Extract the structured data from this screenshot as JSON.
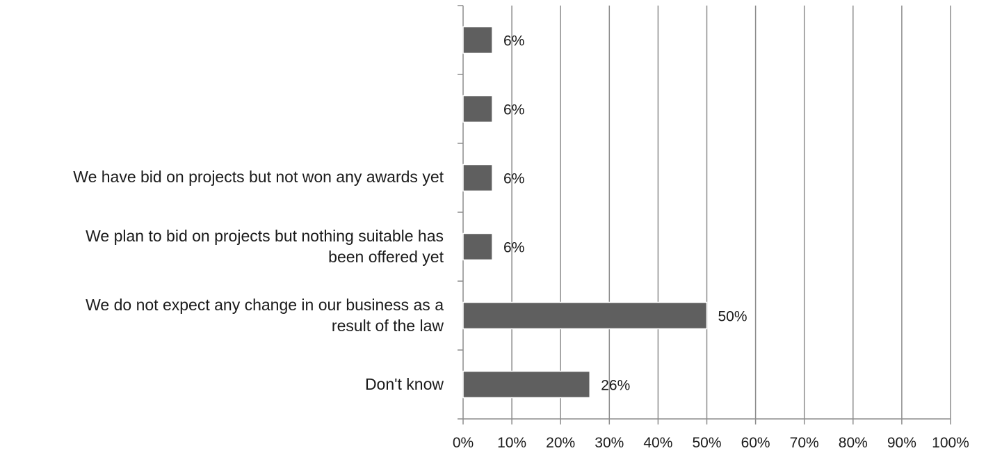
{
  "chart_data": {
    "type": "bar",
    "orientation": "horizontal",
    "categories": [
      "",
      "",
      "We have bid on projects but not won any awards yet",
      "We plan to bid on projects but nothing suitable has been offered yet",
      "We do not expect any change in our business as a result of the law",
      "Don't know"
    ],
    "category_lines": [
      [],
      [],
      [
        "We have bid on projects but not won any awards yet"
      ],
      [
        "We plan to bid on projects but nothing suitable has",
        "been offered yet"
      ],
      [
        "We do not expect any change in our business as a",
        "result of the law"
      ],
      [
        "Don't know"
      ]
    ],
    "values": [
      6,
      6,
      6,
      6,
      50,
      26
    ],
    "data_labels": [
      "6%",
      "6%",
      "6%",
      "6%",
      "50%",
      "26%"
    ],
    "x_ticks": [
      "0%",
      "10%",
      "20%",
      "30%",
      "40%",
      "50%",
      "60%",
      "70%",
      "80%",
      "90%",
      "100%"
    ],
    "xlim": [
      0,
      100
    ],
    "grid": true,
    "legend": "none",
    "colors": {
      "bar": "#5f5f5f",
      "bar_border": "#ffffff",
      "gridline": "#8c8c8c",
      "axis": "#8c8c8c",
      "text": "#1a1a1a"
    }
  }
}
